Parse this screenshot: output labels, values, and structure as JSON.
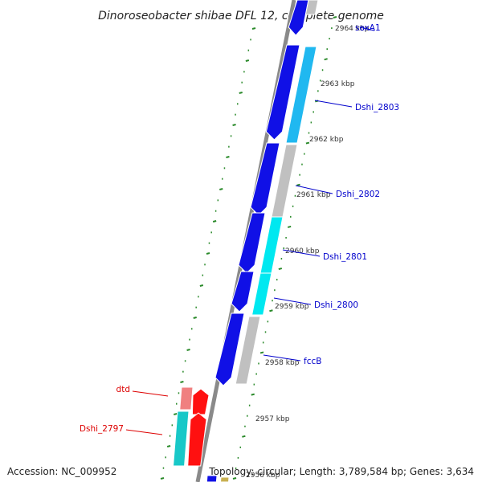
{
  "title": "Dinoroseobacter shibae DFL 12, complete genome",
  "footer": {
    "accession": "Accession: NC_009952",
    "topology": "Topology: circular; Length: 3,789,584 bp; Genes: 3,634"
  },
  "scale_labels": [
    "2964 kbp",
    "2963 kbp",
    "2962 kbp",
    "2961 kbp",
    "2960 kbp",
    "2959 kbp",
    "2958 kbp",
    "2957 kbp",
    "2956 kbp"
  ],
  "genes": [
    {
      "name": "soxA1",
      "strand": "+"
    },
    {
      "name": "Dshi_2803",
      "strand": "+"
    },
    {
      "name": "Dshi_2802",
      "strand": "+"
    },
    {
      "name": "Dshi_2801",
      "strand": "+"
    },
    {
      "name": "Dshi_2800",
      "strand": "+"
    },
    {
      "name": "fccB",
      "strand": "+"
    },
    {
      "name": "dtd",
      "strand": "-"
    },
    {
      "name": "Dshi_2797",
      "strand": "-"
    }
  ],
  "colors": {
    "cds_forward": "#1010e6",
    "cds_reverse": "#ff1010",
    "backbone": "#8a8a8a",
    "tick": "#2a8a2a",
    "forward_label": "#0000cc",
    "reverse_label": "#dd0000",
    "cog_gray": "#c0c0c0",
    "cog_cyan": "#00e8f0",
    "cog_skyblue": "#20b8f0",
    "cog_teal": "#18c8c8",
    "cog_pink": "#f08080"
  }
}
